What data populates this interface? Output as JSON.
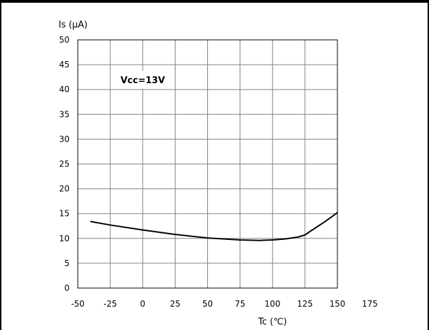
{
  "chart_data": {
    "type": "line",
    "title": "",
    "xlabel": "Tc (℃)",
    "ylabel": "Is (μA)",
    "xlim": [
      -50,
      175
    ],
    "ylim": [
      0,
      50
    ],
    "x_ticks": [
      -50,
      -25,
      0,
      25,
      50,
      75,
      100,
      125,
      150,
      175
    ],
    "y_ticks": [
      0,
      5,
      10,
      15,
      20,
      25,
      30,
      35,
      40,
      45,
      50
    ],
    "grid": true,
    "annotation": "Vcc=13V",
    "series": [
      {
        "color": "#000000",
        "x": [
          -40,
          -25,
          0,
          25,
          50,
          75,
          90,
          100,
          110,
          120,
          125,
          130,
          140,
          150
        ],
        "y": [
          13.4,
          12.7,
          11.7,
          10.8,
          10.1,
          9.7,
          9.6,
          9.7,
          9.9,
          10.3,
          10.7,
          11.6,
          13.3,
          15.2
        ]
      }
    ]
  }
}
